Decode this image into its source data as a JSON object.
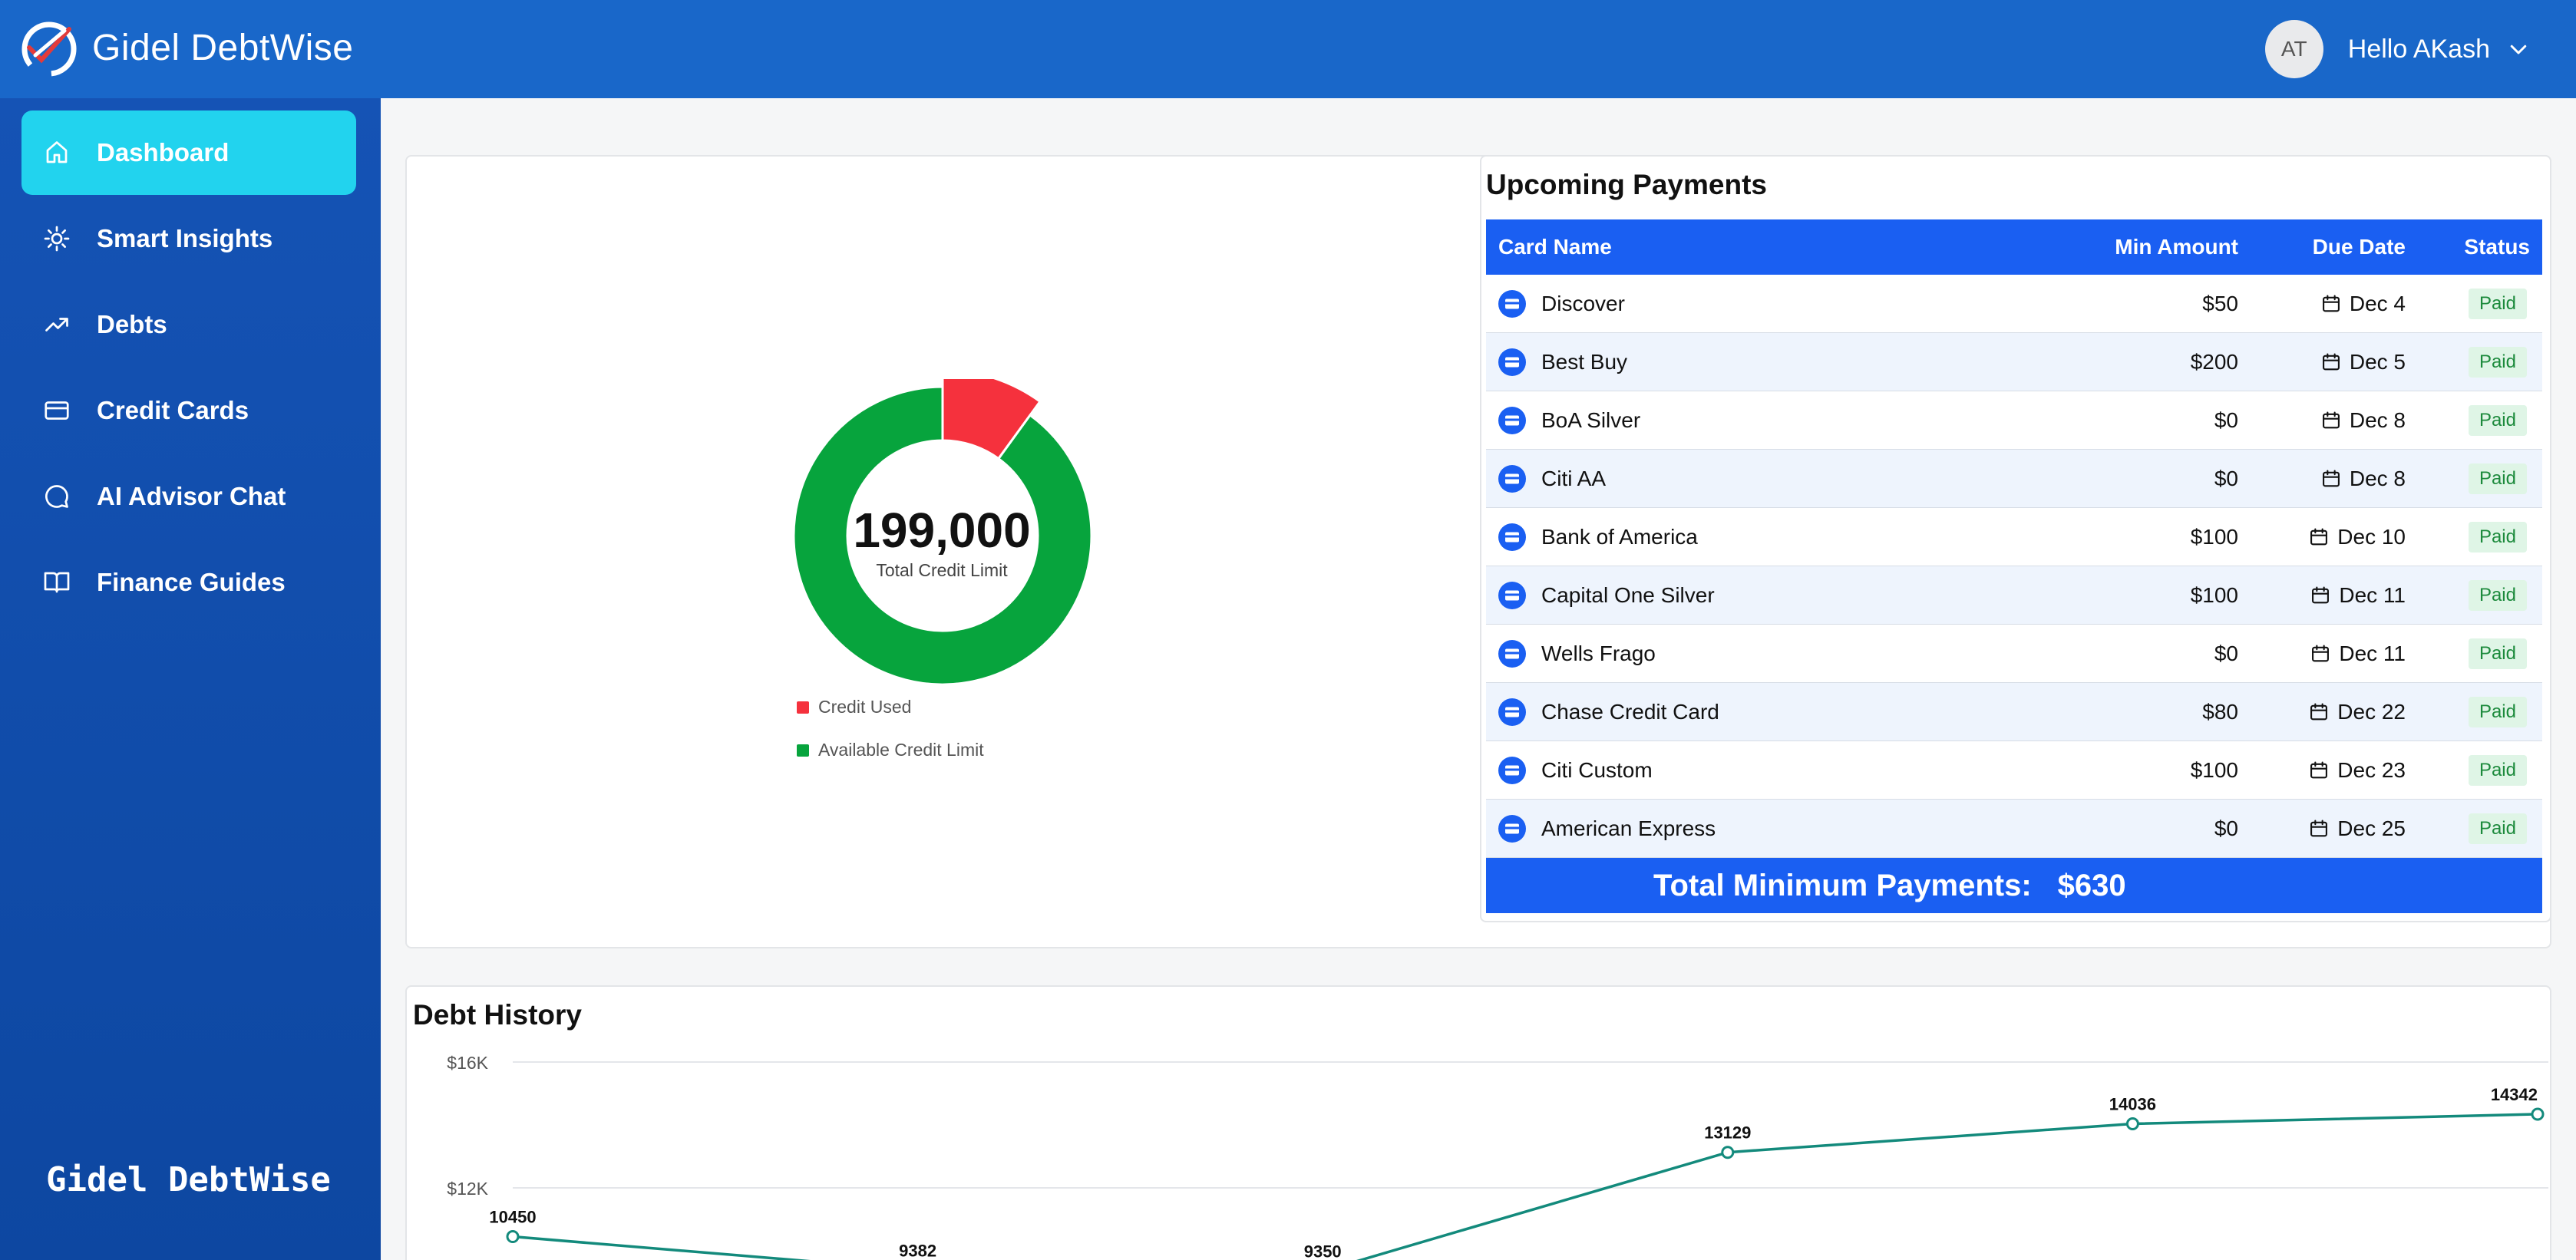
{
  "header": {
    "app_name": "Gidel DebtWise",
    "avatar_initials": "AT",
    "greeting": "Hello AKash"
  },
  "sidebar": {
    "items": [
      {
        "label": "Dashboard",
        "icon": "home-icon",
        "active": true
      },
      {
        "label": "Smart Insights",
        "icon": "sun-icon",
        "active": false
      },
      {
        "label": "Debts",
        "icon": "trending-up-icon",
        "active": false
      },
      {
        "label": "Credit Cards",
        "icon": "credit-card-icon",
        "active": false
      },
      {
        "label": "AI Advisor Chat",
        "icon": "chat-bubble-icon",
        "active": false
      },
      {
        "label": "Finance Guides",
        "icon": "book-open-icon",
        "active": false
      }
    ],
    "footer_brand": "Gidel DebtWise"
  },
  "credit_summary": {
    "total": "199,000",
    "total_label": "Total Credit Limit",
    "legend": [
      {
        "label": "Credit Used",
        "color": "#f5313d"
      },
      {
        "label": "Available Credit Limit",
        "color": "#07a43d"
      }
    ]
  },
  "chart_data": [
    {
      "type": "pie",
      "categories": [
        "Credit Used",
        "Available Credit Limit"
      ],
      "values": [
        10,
        90
      ],
      "title": "",
      "colors": [
        "#f5313d",
        "#07a43d"
      ]
    },
    {
      "type": "line",
      "title": "Debt History",
      "x": [
        "",
        "",
        "",
        "",
        "",
        ""
      ],
      "series": [
        {
          "values": [
            10450,
            9382,
            9350,
            13129,
            14036,
            14342
          ],
          "color": "#138a7c"
        }
      ],
      "yticks": [
        "$16K",
        "$12K"
      ],
      "ylim": [
        8000,
        16000
      ],
      "grid": true
    }
  ],
  "payments": {
    "title": "Upcoming Payments",
    "columns": [
      "Card Name",
      "Min Amount",
      "Due Date",
      "Status"
    ],
    "rows": [
      {
        "name": "Discover",
        "amount": "$50",
        "due": "Dec 4",
        "status": "Paid"
      },
      {
        "name": "Best Buy",
        "amount": "$200",
        "due": "Dec 5",
        "status": "Paid"
      },
      {
        "name": "BoA Silver",
        "amount": "$0",
        "due": "Dec 8",
        "status": "Paid"
      },
      {
        "name": "Citi AA",
        "amount": "$0",
        "due": "Dec 8",
        "status": "Paid"
      },
      {
        "name": "Bank of America",
        "amount": "$100",
        "due": "Dec 10",
        "status": "Paid"
      },
      {
        "name": "Capital One Silver",
        "amount": "$100",
        "due": "Dec 11",
        "status": "Paid"
      },
      {
        "name": "Wells Frago",
        "amount": "$0",
        "due": "Dec 11",
        "status": "Paid"
      },
      {
        "name": "Chase Credit Card",
        "amount": "$80",
        "due": "Dec 22",
        "status": "Paid"
      },
      {
        "name": "Citi Custom",
        "amount": "$100",
        "due": "Dec 23",
        "status": "Paid"
      },
      {
        "name": "American Express",
        "amount": "$0",
        "due": "Dec 25",
        "status": "Paid"
      }
    ],
    "total_label": "Total Minimum Payments:",
    "total_value": "$630"
  },
  "history": {
    "title": "Debt History"
  }
}
